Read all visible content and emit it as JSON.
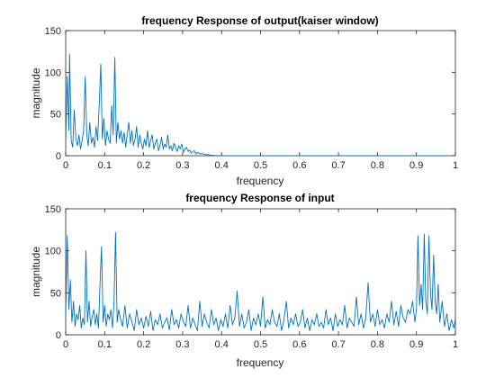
{
  "colors": {
    "series": "#0072BD",
    "axes": "#262626",
    "background": "#ffffff"
  },
  "chart_data": [
    {
      "type": "line",
      "title": "frequency Response of output(kaiser window)",
      "xlabel": "frequency",
      "ylabel": "magnitude",
      "xlim": [
        0,
        1
      ],
      "ylim": [
        0,
        150
      ],
      "xticks": [
        0,
        0.1,
        0.2,
        0.3,
        0.4,
        0.5,
        0.6,
        0.7,
        0.8,
        0.9,
        1
      ],
      "xtick_labels": [
        "0",
        "0.1",
        "0.2",
        "0.3",
        "0.4",
        "0.5",
        "0.6",
        "0.7",
        "0.8",
        "0.9",
        "1"
      ],
      "yticks": [
        0,
        50,
        100,
        150
      ],
      "ytick_labels": [
        "0",
        "50",
        "100",
        "150"
      ],
      "grid": false,
      "series": [
        {
          "x": [
            0,
            0.004,
            0.008,
            0.01,
            0.014,
            0.018,
            0.022,
            0.026,
            0.03,
            0.034,
            0.038,
            0.042,
            0.046,
            0.05,
            0.054,
            0.058,
            0.062,
            0.066,
            0.07,
            0.074,
            0.078,
            0.082,
            0.086,
            0.09,
            0.094,
            0.098,
            0.102,
            0.106,
            0.11,
            0.114,
            0.118,
            0.122,
            0.126,
            0.13,
            0.134,
            0.138,
            0.142,
            0.146,
            0.15,
            0.154,
            0.158,
            0.162,
            0.166,
            0.17,
            0.174,
            0.178,
            0.182,
            0.186,
            0.19,
            0.194,
            0.198,
            0.202,
            0.206,
            0.21,
            0.214,
            0.218,
            0.222,
            0.226,
            0.23,
            0.234,
            0.238,
            0.242,
            0.246,
            0.25,
            0.254,
            0.258,
            0.262,
            0.266,
            0.27,
            0.274,
            0.278,
            0.282,
            0.286,
            0.29,
            0.294,
            0.298,
            0.302,
            0.306,
            0.31,
            0.314,
            0.318,
            0.322,
            0.326,
            0.33,
            0.334,
            0.338,
            0.342,
            0.346,
            0.35,
            0.354,
            0.358,
            0.362,
            0.366,
            0.37,
            0.375,
            0.38,
            0.39,
            0.4,
            0.5,
            0.6,
            0.7,
            0.8,
            0.9,
            1
          ],
          "y": [
            15,
            95,
            30,
            122,
            18,
            10,
            55,
            20,
            12,
            25,
            8,
            18,
            30,
            95,
            25,
            12,
            40,
            15,
            22,
            10,
            35,
            18,
            60,
            110,
            20,
            45,
            12,
            30,
            20,
            15,
            60,
            25,
            118,
            15,
            40,
            20,
            30,
            15,
            28,
            10,
            25,
            40,
            15,
            30,
            12,
            20,
            35,
            10,
            25,
            15,
            8,
            20,
            12,
            30,
            10,
            18,
            25,
            8,
            15,
            20,
            6,
            12,
            22,
            8,
            14,
            10,
            25,
            8,
            12,
            6,
            15,
            10,
            5,
            12,
            8,
            14,
            4,
            8,
            10,
            5,
            7,
            3,
            5,
            6,
            2,
            4,
            3,
            2,
            3,
            1.5,
            2,
            1,
            1.5,
            0.8,
            0.5,
            0.3,
            0.2,
            0.1,
            0.1,
            0.1,
            0.1,
            0.1,
            0.1,
            0.1
          ]
        }
      ]
    },
    {
      "type": "line",
      "title": "frequency Response of input",
      "xlabel": "frequency",
      "ylabel": "magnitude",
      "xlim": [
        0,
        1
      ],
      "ylim": [
        0,
        150
      ],
      "xticks": [
        0,
        0.1,
        0.2,
        0.3,
        0.4,
        0.5,
        0.6,
        0.7,
        0.8,
        0.9,
        1
      ],
      "xtick_labels": [
        "0",
        "0.1",
        "0.2",
        "0.3",
        "0.4",
        "0.5",
        "0.6",
        "0.7",
        "0.8",
        "0.9",
        "1"
      ],
      "yticks": [
        0,
        50,
        100,
        150
      ],
      "ytick_labels": [
        "0",
        "50",
        "100",
        "150"
      ],
      "grid": false,
      "series": [
        {
          "x": [
            0,
            0.004,
            0.008,
            0.012,
            0.016,
            0.02,
            0.024,
            0.028,
            0.032,
            0.036,
            0.04,
            0.044,
            0.048,
            0.052,
            0.056,
            0.06,
            0.064,
            0.068,
            0.072,
            0.076,
            0.08,
            0.084,
            0.088,
            0.092,
            0.096,
            0.1,
            0.104,
            0.108,
            0.112,
            0.116,
            0.12,
            0.124,
            0.128,
            0.132,
            0.136,
            0.14,
            0.146,
            0.152,
            0.158,
            0.164,
            0.17,
            0.176,
            0.182,
            0.188,
            0.194,
            0.2,
            0.206,
            0.212,
            0.218,
            0.224,
            0.23,
            0.236,
            0.242,
            0.248,
            0.254,
            0.26,
            0.266,
            0.272,
            0.278,
            0.284,
            0.29,
            0.296,
            0.302,
            0.308,
            0.314,
            0.32,
            0.326,
            0.332,
            0.338,
            0.344,
            0.35,
            0.356,
            0.362,
            0.368,
            0.374,
            0.38,
            0.386,
            0.392,
            0.398,
            0.404,
            0.41,
            0.416,
            0.422,
            0.428,
            0.434,
            0.44,
            0.446,
            0.452,
            0.458,
            0.464,
            0.47,
            0.476,
            0.482,
            0.488,
            0.494,
            0.5,
            0.506,
            0.512,
            0.518,
            0.524,
            0.53,
            0.536,
            0.542,
            0.548,
            0.554,
            0.56,
            0.566,
            0.572,
            0.578,
            0.584,
            0.59,
            0.596,
            0.602,
            0.608,
            0.614,
            0.62,
            0.626,
            0.632,
            0.638,
            0.644,
            0.65,
            0.656,
            0.662,
            0.668,
            0.674,
            0.68,
            0.686,
            0.692,
            0.698,
            0.704,
            0.71,
            0.716,
            0.722,
            0.728,
            0.734,
            0.74,
            0.746,
            0.752,
            0.758,
            0.764,
            0.77,
            0.776,
            0.782,
            0.788,
            0.794,
            0.8,
            0.806,
            0.812,
            0.818,
            0.824,
            0.83,
            0.836,
            0.842,
            0.848,
            0.854,
            0.86,
            0.866,
            0.872,
            0.878,
            0.884,
            0.89,
            0.896,
            0.9,
            0.904,
            0.908,
            0.912,
            0.916,
            0.92,
            0.924,
            0.928,
            0.932,
            0.936,
            0.94,
            0.944,
            0.948,
            0.952,
            0.956,
            0.96,
            0.966,
            0.972,
            0.978,
            0.984,
            0.99,
            0.996,
            1
          ],
          "y": [
            20,
            118,
            30,
            65,
            15,
            40,
            10,
            25,
            18,
            35,
            8,
            20,
            12,
            100,
            15,
            40,
            10,
            22,
            30,
            12,
            25,
            8,
            60,
            105,
            15,
            35,
            10,
            25,
            18,
            30,
            8,
            40,
            122,
            15,
            30,
            20,
            10,
            35,
            8,
            25,
            15,
            5,
            30,
            12,
            20,
            8,
            22,
            10,
            28,
            5,
            18,
            12,
            25,
            8,
            15,
            20,
            6,
            30,
            12,
            18,
            8,
            25,
            15,
            10,
            35,
            8,
            20,
            12,
            5,
            40,
            10,
            25,
            15,
            8,
            30,
            12,
            20,
            5,
            18,
            10,
            25,
            8,
            35,
            12,
            20,
            52,
            10,
            25,
            8,
            15,
            30,
            5,
            20,
            12,
            25,
            10,
            45,
            8,
            18,
            12,
            30,
            15,
            10,
            25,
            5,
            18,
            40,
            8,
            20,
            12,
            25,
            10,
            15,
            30,
            8,
            20,
            5,
            18,
            12,
            25,
            10,
            15,
            8,
            30,
            12,
            20,
            5,
            25,
            10,
            18,
            12,
            35,
            8,
            20,
            15,
            10,
            45,
            12,
            25,
            8,
            20,
            62,
            15,
            25,
            10,
            30,
            12,
            18,
            8,
            25,
            15,
            40,
            12,
            28,
            10,
            35,
            20,
            15,
            30,
            25,
            40,
            15,
            30,
            118,
            35,
            60,
            30,
            120,
            40,
            25,
            118,
            50,
            30,
            95,
            40,
            25,
            60,
            15,
            40,
            10,
            25,
            5,
            18,
            8,
            20
          ]
        }
      ]
    }
  ]
}
